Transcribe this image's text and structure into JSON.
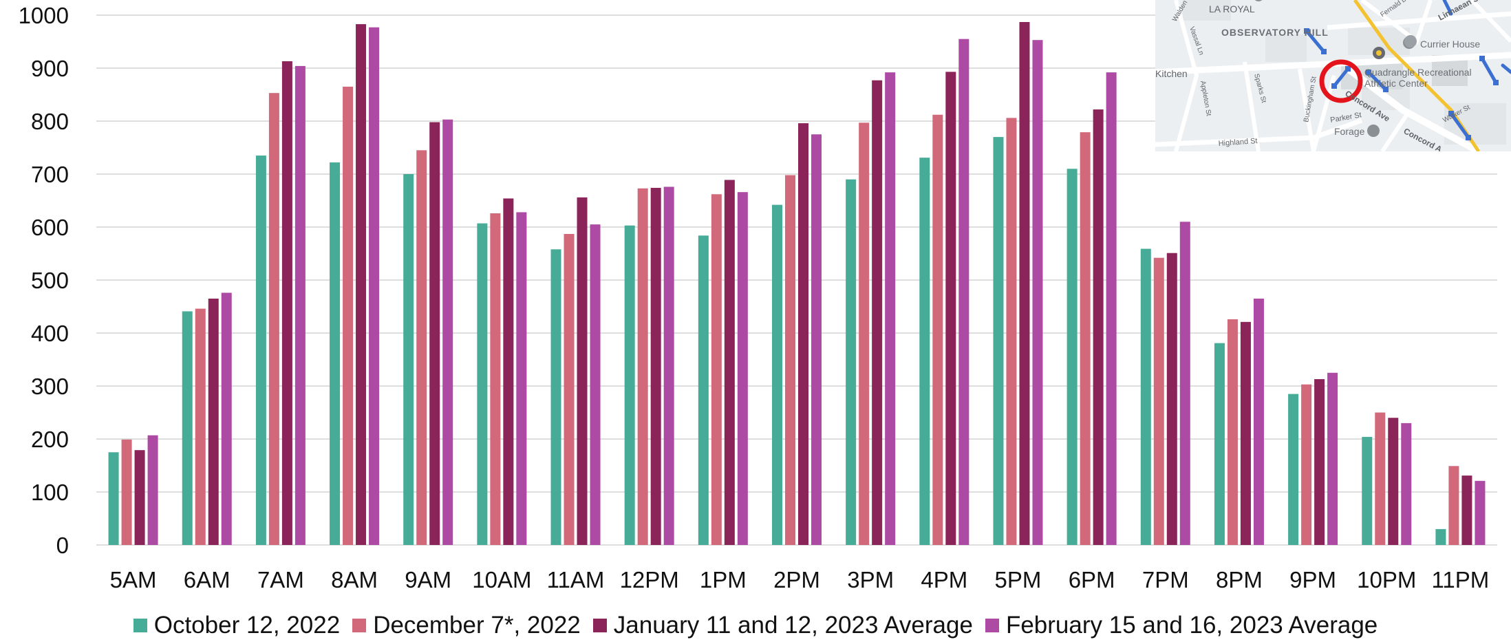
{
  "chart_data": {
    "type": "bar",
    "title": "",
    "xlabel": "",
    "ylabel": "",
    "ylim": [
      0,
      1000
    ],
    "yticks": [
      0,
      100,
      200,
      300,
      400,
      500,
      600,
      700,
      800,
      900,
      1000
    ],
    "grid": true,
    "legend_position": "bottom",
    "categories": [
      "5AM",
      "6AM",
      "7AM",
      "8AM",
      "9AM",
      "10AM",
      "11AM",
      "12PM",
      "1PM",
      "2PM",
      "3PM",
      "4PM",
      "5PM",
      "6PM",
      "7PM",
      "8PM",
      "9PM",
      "10PM",
      "11PM"
    ],
    "series": [
      {
        "name": "October 12, 2022",
        "color": "#46ac98",
        "values": [
          175,
          441,
          735,
          722,
          700,
          607,
          558,
          603,
          584,
          642,
          690,
          731,
          770,
          710,
          559,
          381,
          285,
          204,
          30
        ]
      },
      {
        "name": "December 7*, 2022",
        "color": "#d2697a",
        "values": [
          199,
          446,
          853,
          865,
          745,
          626,
          587,
          673,
          662,
          698,
          797,
          812,
          806,
          779,
          542,
          426,
          303,
          250,
          149
        ]
      },
      {
        "name": "January 11 and 12, 2023 Average",
        "color": "#8b2459",
        "values": [
          179,
          465,
          913,
          983,
          798,
          654,
          656,
          674,
          689,
          796,
          877,
          893,
          987,
          822,
          551,
          421,
          313,
          240,
          131
        ]
      },
      {
        "name": "February 15 and 16, 2023 Average",
        "color": "#ad4aa3",
        "values": [
          207,
          476,
          904,
          977,
          803,
          628,
          605,
          676,
          666,
          775,
          892,
          955,
          953,
          892,
          610,
          465,
          325,
          230,
          121
        ]
      }
    ]
  },
  "map": {
    "labels": {
      "la_royal": "LA ROYAL",
      "observatory_hill": "OBSERVATORY HILL",
      "currier_house": "Currier House",
      "kitchen": "Kitchen",
      "quad_rec": "Quadrangle Recreational",
      "athletic_center": "Athletic Center",
      "concord_ave": "Concord Ave",
      "concord_ave_2": "Concord A",
      "parker_st": "Parker St",
      "forage": "Forage",
      "highland_st": "Highland St",
      "linnaean_st": "Linnaean St",
      "walden_st": "Walden St",
      "vassal_ln": "Vassal Ln",
      "appleton_st": "Appleton St",
      "sparks_st": "Sparks St",
      "buckingham_st": "Buckingham St",
      "fernald_dr": "Fernald Dr",
      "walker_st": "Walker St"
    }
  }
}
